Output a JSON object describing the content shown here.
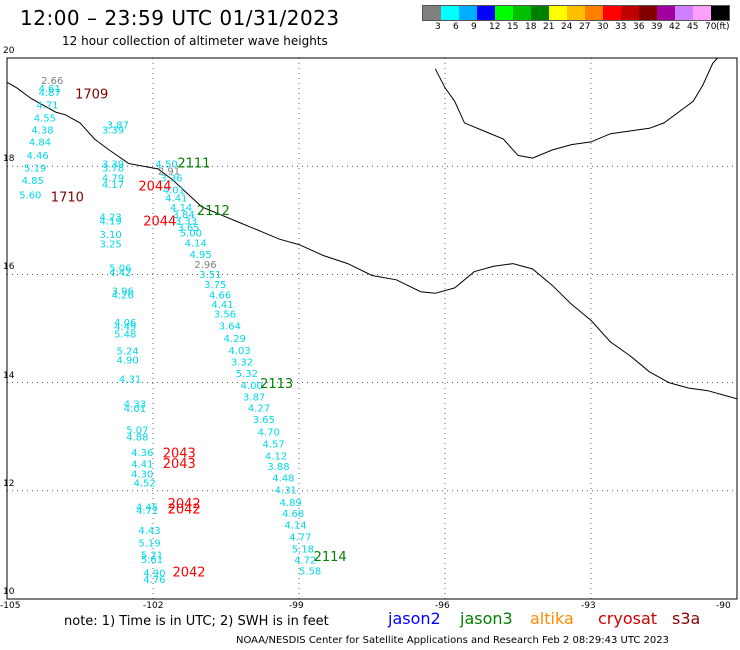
{
  "title": "12:00 – 23:59 UTC 01/31/2023",
  "subtitle": "12 hour collection of altimeter wave heights",
  "colorbar": {
    "unit": "(ft)",
    "colors": [
      "#808080",
      "#00ffff",
      "#00b0ff",
      "#0000ff",
      "#00ff00",
      "#00c000",
      "#008000",
      "#ffff00",
      "#ffc000",
      "#ff8000",
      "#ff0000",
      "#c00000",
      "#800000",
      "#a000a0",
      "#d080ff",
      "#ffa0ff",
      "#000000"
    ],
    "ticks": [
      "3",
      "6",
      "9",
      "12",
      "15",
      "18",
      "21",
      "24",
      "27",
      "30",
      "33",
      "36",
      "39",
      "42",
      "45",
      "70"
    ]
  },
  "axes": {
    "lon_ticks": [
      "-105",
      "-102",
      "-99",
      "-96",
      "-93",
      "-90"
    ],
    "lat_ticks": [
      "20",
      "18",
      "16",
      "14",
      "12",
      "10"
    ]
  },
  "note": "note: 1) Time is in UTC; 2) SWH is in feet",
  "legend": [
    {
      "label": "jason2",
      "color": "#0000ff"
    },
    {
      "label": "jason3",
      "color": "#008000"
    },
    {
      "label": "altika",
      "color": "#ff8c00"
    },
    {
      "label": "cryosat",
      "color": "#d00000"
    },
    {
      "label": "s3a",
      "color": "#8b0000"
    }
  ],
  "credit": "NOAA/NESDIS Center for Satellite Applications and Research    Feb  2 08:29:43 UTC 2023",
  "time_labels": [
    {
      "text": "1709",
      "color": "#800000",
      "lon": -103.6,
      "lat": 19.25
    },
    {
      "text": "1710",
      "color": "#800000",
      "lon": -104.1,
      "lat": 17.35
    },
    {
      "text": "2111",
      "color": "#008000",
      "lon": -101.5,
      "lat": 17.98
    },
    {
      "text": "2112",
      "color": "#008000",
      "lon": -101.1,
      "lat": 17.1
    },
    {
      "text": "2113",
      "color": "#008000",
      "lon": -99.8,
      "lat": 13.9
    },
    {
      "text": "2114",
      "color": "#008000",
      "lon": -98.7,
      "lat": 10.7
    },
    {
      "text": "2044",
      "color": "#ff0000",
      "lon": -102.3,
      "lat": 17.55
    },
    {
      "text": "2044",
      "color": "#ff0000",
      "lon": -102.2,
      "lat": 16.9
    },
    {
      "text": "2043",
      "color": "#ff0000",
      "lon": -101.8,
      "lat": 12.62
    },
    {
      "text": "2043",
      "color": "#ff0000",
      "lon": -101.8,
      "lat": 12.42
    },
    {
      "text": "2042",
      "color": "#ff0000",
      "lon": -101.7,
      "lat": 11.68
    },
    {
      "text": "2042",
      "color": "#ff0000",
      "lon": -101.7,
      "lat": 11.58
    },
    {
      "text": "2042",
      "color": "#ff0000",
      "lon": -101.6,
      "lat": 10.42
    }
  ],
  "wave_heights": [
    {
      "v": "2.66",
      "c": "#808080",
      "lon": -104.3,
      "lat": 19.52
    },
    {
      "v": "4.61",
      "c": "#00d8e8",
      "lon": -104.35,
      "lat": 19.37
    },
    {
      "v": "4.87",
      "c": "#00d8e8",
      "lon": -104.35,
      "lat": 19.3
    },
    {
      "v": "4.71",
      "c": "#00d8e8",
      "lon": -104.4,
      "lat": 19.07
    },
    {
      "v": "4.55",
      "c": "#00d8e8",
      "lon": -104.45,
      "lat": 18.83
    },
    {
      "v": "4.38",
      "c": "#00d8e8",
      "lon": -104.5,
      "lat": 18.6
    },
    {
      "v": "4.84",
      "c": "#00d8e8",
      "lon": -104.55,
      "lat": 18.38
    },
    {
      "v": "4.46",
      "c": "#00d8e8",
      "lon": -104.6,
      "lat": 18.13
    },
    {
      "v": "5.19",
      "c": "#00d8e8",
      "lon": -104.65,
      "lat": 17.9
    },
    {
      "v": "4.85",
      "c": "#00d8e8",
      "lon": -104.7,
      "lat": 17.67
    },
    {
      "v": "5.60",
      "c": "#00d8e8",
      "lon": -104.75,
      "lat": 17.4
    },
    {
      "v": "3.87",
      "c": "#00d8e8",
      "lon": -102.95,
      "lat": 18.7
    },
    {
      "v": "3.39",
      "c": "#00d8e8",
      "lon": -103.05,
      "lat": 18.6
    },
    {
      "v": "3.39",
      "c": "#00d8e8",
      "lon": -103.05,
      "lat": 17.98
    },
    {
      "v": "3.78",
      "c": "#00d8e8",
      "lon": -103.05,
      "lat": 17.9
    },
    {
      "v": "4.79",
      "c": "#00d8e8",
      "lon": -103.05,
      "lat": 17.72
    },
    {
      "v": "4.17",
      "c": "#00d8e8",
      "lon": -103.05,
      "lat": 17.6
    },
    {
      "v": "4.23",
      "c": "#00d8e8",
      "lon": -103.1,
      "lat": 17.0
    },
    {
      "v": "4.19",
      "c": "#00d8e8",
      "lon": -103.1,
      "lat": 16.92
    },
    {
      "v": "3.10",
      "c": "#00d8e8",
      "lon": -103.1,
      "lat": 16.67
    },
    {
      "v": "3.25",
      "c": "#00d8e8",
      "lon": -103.1,
      "lat": 16.5
    },
    {
      "v": "5.06",
      "c": "#00d8e8",
      "lon": -102.9,
      "lat": 16.05
    },
    {
      "v": "4.42",
      "c": "#00d8e8",
      "lon": -102.9,
      "lat": 15.97
    },
    {
      "v": "3.96",
      "c": "#00d8e8",
      "lon": -102.85,
      "lat": 15.63
    },
    {
      "v": "4.26",
      "c": "#00d8e8",
      "lon": -102.85,
      "lat": 15.55
    },
    {
      "v": "4.06",
      "c": "#00d8e8",
      "lon": -102.8,
      "lat": 15.05
    },
    {
      "v": "4.49",
      "c": "#00d8e8",
      "lon": -102.8,
      "lat": 14.97
    },
    {
      "v": "5.48",
      "c": "#00d8e8",
      "lon": -102.8,
      "lat": 14.83
    },
    {
      "v": "5.24",
      "c": "#00d8e8",
      "lon": -102.75,
      "lat": 14.52
    },
    {
      "v": "4.90",
      "c": "#00d8e8",
      "lon": -102.75,
      "lat": 14.35
    },
    {
      "v": "4.31",
      "c": "#00d8e8",
      "lon": -102.7,
      "lat": 14.0
    },
    {
      "v": "4.33",
      "c": "#00d8e8",
      "lon": -102.6,
      "lat": 13.54
    },
    {
      "v": "4.01",
      "c": "#00d8e8",
      "lon": -102.6,
      "lat": 13.46
    },
    {
      "v": "5.07",
      "c": "#00d8e8",
      "lon": -102.55,
      "lat": 13.06
    },
    {
      "v": "4.88",
      "c": "#00d8e8",
      "lon": -102.55,
      "lat": 12.93
    },
    {
      "v": "4.36",
      "c": "#00d8e8",
      "lon": -102.45,
      "lat": 12.64
    },
    {
      "v": "4.41",
      "c": "#00d8e8",
      "lon": -102.45,
      "lat": 12.43
    },
    {
      "v": "4.30",
      "c": "#00d8e8",
      "lon": -102.45,
      "lat": 12.25
    },
    {
      "v": "4.52",
      "c": "#00d8e8",
      "lon": -102.4,
      "lat": 12.08
    },
    {
      "v": "4.45",
      "c": "#00d8e8",
      "lon": -102.35,
      "lat": 11.64
    },
    {
      "v": "4.71",
      "c": "#00d8e8",
      "lon": -102.35,
      "lat": 11.57
    },
    {
      "v": "4.43",
      "c": "#00d8e8",
      "lon": -102.3,
      "lat": 11.2
    },
    {
      "v": "5.19",
      "c": "#00d8e8",
      "lon": -102.3,
      "lat": 10.97
    },
    {
      "v": "5.21",
      "c": "#00d8e8",
      "lon": -102.25,
      "lat": 10.75
    },
    {
      "v": "5.61",
      "c": "#00d8e8",
      "lon": -102.25,
      "lat": 10.67
    },
    {
      "v": "4.90",
      "c": "#00d8e8",
      "lon": -102.2,
      "lat": 10.42
    },
    {
      "v": "4.76",
      "c": "#00d8e8",
      "lon": -102.2,
      "lat": 10.3
    },
    {
      "v": "4.50",
      "c": "#00d8e8",
      "lon": -101.95,
      "lat": 17.98
    },
    {
      "v": "2.91",
      "c": "#808080",
      "lon": -101.9,
      "lat": 17.85
    },
    {
      "v": "3.36",
      "c": "#00d8e8",
      "lon": -101.85,
      "lat": 17.72
    },
    {
      "v": "4.01",
      "c": "#00d8e8",
      "lon": -101.8,
      "lat": 17.5
    },
    {
      "v": "4.41",
      "c": "#00d8e8",
      "lon": -101.75,
      "lat": 17.35
    },
    {
      "v": "4.14",
      "c": "#00d8e8",
      "lon": -101.65,
      "lat": 17.17
    },
    {
      "v": "3.84",
      "c": "#00d8e8",
      "lon": -101.6,
      "lat": 17.04
    },
    {
      "v": "3.33",
      "c": "#00d8e8",
      "lon": -101.55,
      "lat": 16.92
    },
    {
      "v": "3.65",
      "c": "#00d8e8",
      "lon": -101.5,
      "lat": 16.8
    },
    {
      "v": "5.00",
      "c": "#00d8e8",
      "lon": -101.45,
      "lat": 16.7
    },
    {
      "v": "4.14",
      "c": "#00d8e8",
      "lon": -101.35,
      "lat": 16.52
    },
    {
      "v": "4.95",
      "c": "#00d8e8",
      "lon": -101.25,
      "lat": 16.3
    },
    {
      "v": "2.96",
      "c": "#808080",
      "lon": -101.15,
      "lat": 16.12
    },
    {
      "v": "3.51",
      "c": "#00d8e8",
      "lon": -101.05,
      "lat": 15.93
    },
    {
      "v": "3.75",
      "c": "#00d8e8",
      "lon": -100.95,
      "lat": 15.75
    },
    {
      "v": "4.66",
      "c": "#00d8e8",
      "lon": -100.85,
      "lat": 15.55
    },
    {
      "v": "4.41",
      "c": "#00d8e8",
      "lon": -100.8,
      "lat": 15.38
    },
    {
      "v": "3.56",
      "c": "#00d8e8",
      "lon": -100.75,
      "lat": 15.2
    },
    {
      "v": "3.64",
      "c": "#00d8e8",
      "lon": -100.65,
      "lat": 14.98
    },
    {
      "v": "4.29",
      "c": "#00d8e8",
      "lon": -100.55,
      "lat": 14.75
    },
    {
      "v": "4.03",
      "c": "#00d8e8",
      "lon": -100.45,
      "lat": 14.53
    },
    {
      "v": "3.32",
      "c": "#00d8e8",
      "lon": -100.4,
      "lat": 14.32
    },
    {
      "v": "5.32",
      "c": "#00d8e8",
      "lon": -100.3,
      "lat": 14.1
    },
    {
      "v": "4.00",
      "c": "#00d8e8",
      "lon": -100.2,
      "lat": 13.88
    },
    {
      "v": "3.87",
      "c": "#00d8e8",
      "lon": -100.15,
      "lat": 13.67
    },
    {
      "v": "4.27",
      "c": "#00d8e8",
      "lon": -100.05,
      "lat": 13.47
    },
    {
      "v": "3.65",
      "c": "#00d8e8",
      "lon": -99.95,
      "lat": 13.25
    },
    {
      "v": "4.70",
      "c": "#00d8e8",
      "lon": -99.85,
      "lat": 13.02
    },
    {
      "v": "4.57",
      "c": "#00d8e8",
      "lon": -99.75,
      "lat": 12.8
    },
    {
      "v": "4.12",
      "c": "#00d8e8",
      "lon": -99.7,
      "lat": 12.58
    },
    {
      "v": "3.88",
      "c": "#00d8e8",
      "lon": -99.65,
      "lat": 12.38
    },
    {
      "v": "4.48",
      "c": "#00d8e8",
      "lon": -99.55,
      "lat": 12.17
    },
    {
      "v": "4.31",
      "c": "#00d8e8",
      "lon": -99.5,
      "lat": 11.95
    },
    {
      "v": "4.89",
      "c": "#00d8e8",
      "lon": -99.4,
      "lat": 11.72
    },
    {
      "v": "4.68",
      "c": "#00d8e8",
      "lon": -99.35,
      "lat": 11.52
    },
    {
      "v": "4.14",
      "c": "#00d8e8",
      "lon": -99.3,
      "lat": 11.3
    },
    {
      "v": "4.77",
      "c": "#00d8e8",
      "lon": -99.2,
      "lat": 11.08
    },
    {
      "v": "5.18",
      "c": "#00d8e8",
      "lon": -99.15,
      "lat": 10.86
    },
    {
      "v": "4.72",
      "c": "#00d8e8",
      "lon": -99.1,
      "lat": 10.66
    },
    {
      "v": "5.58",
      "c": "#00d8e8",
      "lon": -99.0,
      "lat": 10.45
    }
  ]
}
